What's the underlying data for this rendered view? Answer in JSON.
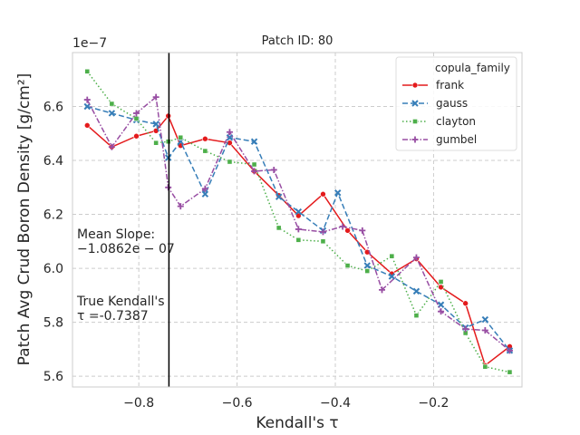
{
  "chart_data": {
    "type": "line",
    "title": "Patch ID: 80",
    "xlabel": "Kendall's τ",
    "ylabel": "Patch Avg Crud Boron Density [g/cm²]",
    "y_offset_text": "1e−7",
    "xlim": [
      -0.935,
      -0.02
    ],
    "ylim": [
      5.56,
      6.8
    ],
    "x_ticks": [
      -0.8,
      -0.6,
      -0.4,
      -0.2
    ],
    "x_tick_labels": [
      "−0.8",
      "−0.6",
      "−0.4",
      "−0.2"
    ],
    "y_ticks": [
      5.6,
      5.8,
      6.0,
      6.2,
      6.4,
      6.6
    ],
    "y_tick_labels": [
      "5.6",
      "5.8",
      "6.0",
      "6.2",
      "6.4",
      "6.6"
    ],
    "grid": true,
    "legend_title": "copula_family",
    "legend_position": "top-right",
    "vline_x": -0.7387,
    "annotations": {
      "mean_slope_label": "Mean Slope:",
      "mean_slope_value": "−1.0862e − 07",
      "true_tau_label": "True Kendall's",
      "true_tau_value": "τ =-0.7387"
    },
    "series": [
      {
        "name": "frank",
        "color": "#e41a1c",
        "marker": "circle",
        "dash": "solid",
        "x": [
          -0.905,
          -0.855,
          -0.805,
          -0.765,
          -0.74,
          -0.715,
          -0.665,
          -0.615,
          -0.565,
          -0.515,
          -0.475,
          -0.425,
          -0.375,
          -0.335,
          -0.285,
          -0.235,
          -0.185,
          -0.135,
          -0.095,
          -0.045
        ],
        "y": [
          6.53,
          6.45,
          6.49,
          6.51,
          6.565,
          6.455,
          6.48,
          6.465,
          6.36,
          6.27,
          6.195,
          6.275,
          6.14,
          6.06,
          5.98,
          6.035,
          5.93,
          5.87,
          5.64,
          5.71
        ]
      },
      {
        "name": "gauss",
        "color": "#377eb8",
        "marker": "x",
        "dash": "dashed",
        "x": [
          -0.905,
          -0.855,
          -0.805,
          -0.765,
          -0.74,
          -0.715,
          -0.665,
          -0.615,
          -0.565,
          -0.515,
          -0.475,
          -0.425,
          -0.395,
          -0.335,
          -0.285,
          -0.235,
          -0.185,
          -0.135,
          -0.095,
          -0.045
        ],
        "y": [
          6.6,
          6.575,
          6.55,
          6.535,
          6.41,
          6.47,
          6.275,
          6.485,
          6.47,
          6.265,
          6.21,
          6.14,
          6.28,
          6.01,
          5.97,
          5.915,
          5.865,
          5.78,
          5.81,
          5.695
        ]
      },
      {
        "name": "clayton",
        "color": "#4daf4a",
        "marker": "square",
        "dash": "dotted",
        "x": [
          -0.905,
          -0.855,
          -0.805,
          -0.765,
          -0.74,
          -0.715,
          -0.665,
          -0.615,
          -0.565,
          -0.515,
          -0.475,
          -0.425,
          -0.375,
          -0.335,
          -0.285,
          -0.235,
          -0.185,
          -0.135,
          -0.095,
          -0.045
        ],
        "y": [
          6.73,
          6.61,
          6.555,
          6.465,
          6.47,
          6.485,
          6.435,
          6.395,
          6.385,
          6.15,
          6.105,
          6.1,
          6.01,
          5.99,
          6.045,
          5.825,
          5.95,
          5.76,
          5.635,
          5.615
        ]
      },
      {
        "name": "gumbel",
        "color": "#984ea3",
        "marker": "plus",
        "dash": "dashdot",
        "x": [
          -0.905,
          -0.855,
          -0.805,
          -0.765,
          -0.74,
          -0.715,
          -0.665,
          -0.615,
          -0.565,
          -0.525,
          -0.475,
          -0.425,
          -0.385,
          -0.345,
          -0.305,
          -0.235,
          -0.185,
          -0.135,
          -0.095,
          -0.045
        ],
        "y": [
          6.625,
          6.45,
          6.575,
          6.635,
          6.3,
          6.23,
          6.295,
          6.505,
          6.36,
          6.365,
          6.145,
          6.135,
          6.155,
          6.14,
          5.92,
          6.04,
          5.84,
          5.775,
          5.77,
          5.695
        ]
      }
    ]
  }
}
